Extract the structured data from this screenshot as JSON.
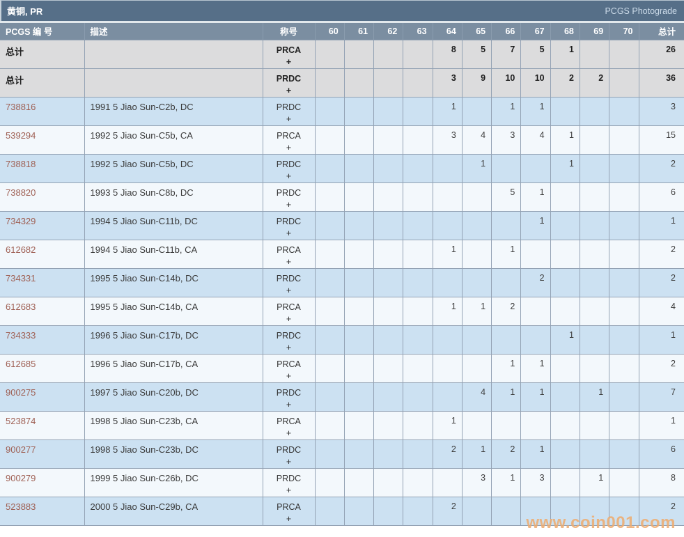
{
  "header": {
    "title": "黄铜, PR",
    "photograde_label": "PCGS Photograde"
  },
  "table": {
    "columns": {
      "pcgs": "PCGS 编 号",
      "description": "描述",
      "designation": "称号",
      "grades": [
        "60",
        "61",
        "62",
        "63",
        "64",
        "65",
        "66",
        "67",
        "68",
        "69",
        "70"
      ],
      "total": "总计"
    },
    "rows": [
      {
        "type": "total",
        "pcgs": "总计",
        "description": "",
        "designation": "PRCA",
        "plus": "+",
        "grades": [
          "",
          "",
          "",
          "",
          "8",
          "5",
          "7",
          "5",
          "1",
          "",
          ""
        ],
        "total": "26"
      },
      {
        "type": "total",
        "pcgs": "总计",
        "description": "",
        "designation": "PRDC",
        "plus": "+",
        "grades": [
          "",
          "",
          "",
          "",
          "3",
          "9",
          "10",
          "10",
          "2",
          "2",
          ""
        ],
        "total": "36"
      },
      {
        "type": "data",
        "pcgs": "738816",
        "description": "1991 5 Jiao Sun-C2b, DC",
        "designation": "PRDC",
        "plus": "+",
        "grades": [
          "",
          "",
          "",
          "",
          "1",
          "",
          "1",
          "1",
          "",
          "",
          ""
        ],
        "total": "3"
      },
      {
        "type": "data",
        "pcgs": "539294",
        "description": "1992 5 Jiao Sun-C5b, CA",
        "designation": "PRCA",
        "plus": "+",
        "grades": [
          "",
          "",
          "",
          "",
          "3",
          "4",
          "3",
          "4",
          "1",
          "",
          ""
        ],
        "total": "15"
      },
      {
        "type": "data",
        "pcgs": "738818",
        "description": "1992 5 Jiao Sun-C5b, DC",
        "designation": "PRDC",
        "plus": "+",
        "grades": [
          "",
          "",
          "",
          "",
          "",
          "1",
          "",
          "",
          "1",
          "",
          ""
        ],
        "total": "2"
      },
      {
        "type": "data",
        "pcgs": "738820",
        "description": "1993 5 Jiao Sun-C8b, DC",
        "designation": "PRDC",
        "plus": "+",
        "grades": [
          "",
          "",
          "",
          "",
          "",
          "",
          "5",
          "1",
          "",
          "",
          ""
        ],
        "total": "6"
      },
      {
        "type": "data",
        "pcgs": "734329",
        "description": "1994 5 Jiao Sun-C11b, DC",
        "designation": "PRDC",
        "plus": "+",
        "grades": [
          "",
          "",
          "",
          "",
          "",
          "",
          "",
          "1",
          "",
          "",
          ""
        ],
        "total": "1"
      },
      {
        "type": "data",
        "pcgs": "612682",
        "description": "1994 5 Jiao Sun-C11b, CA",
        "designation": "PRCA",
        "plus": "+",
        "grades": [
          "",
          "",
          "",
          "",
          "1",
          "",
          "1",
          "",
          "",
          "",
          ""
        ],
        "total": "2"
      },
      {
        "type": "data",
        "pcgs": "734331",
        "description": "1995 5 Jiao Sun-C14b, DC",
        "designation": "PRDC",
        "plus": "+",
        "grades": [
          "",
          "",
          "",
          "",
          "",
          "",
          "",
          "2",
          "",
          "",
          ""
        ],
        "total": "2"
      },
      {
        "type": "data",
        "pcgs": "612683",
        "description": "1995 5 Jiao Sun-C14b, CA",
        "designation": "PRCA",
        "plus": "+",
        "grades": [
          "",
          "",
          "",
          "",
          "1",
          "1",
          "2",
          "",
          "",
          "",
          ""
        ],
        "total": "4"
      },
      {
        "type": "data",
        "pcgs": "734333",
        "description": "1996 5 Jiao Sun-C17b, DC",
        "designation": "PRDC",
        "plus": "+",
        "grades": [
          "",
          "",
          "",
          "",
          "",
          "",
          "",
          "",
          "1",
          "",
          ""
        ],
        "total": "1"
      },
      {
        "type": "data",
        "pcgs": "612685",
        "description": "1996 5 Jiao Sun-C17b, CA",
        "designation": "PRCA",
        "plus": "+",
        "grades": [
          "",
          "",
          "",
          "",
          "",
          "",
          "1",
          "1",
          "",
          "",
          ""
        ],
        "total": "2"
      },
      {
        "type": "data",
        "pcgs": "900275",
        "description": "1997 5 Jiao Sun-C20b, DC",
        "designation": "PRDC",
        "plus": "+",
        "grades": [
          "",
          "",
          "",
          "",
          "",
          "4",
          "1",
          "1",
          "",
          "1",
          ""
        ],
        "total": "7"
      },
      {
        "type": "data",
        "pcgs": "523874",
        "description": "1998 5 Jiao Sun-C23b, CA",
        "designation": "PRCA",
        "plus": "+",
        "grades": [
          "",
          "",
          "",
          "",
          "1",
          "",
          "",
          "",
          "",
          "",
          ""
        ],
        "total": "1"
      },
      {
        "type": "data",
        "pcgs": "900277",
        "description": "1998 5 Jiao Sun-C23b, DC",
        "designation": "PRDC",
        "plus": "+",
        "grades": [
          "",
          "",
          "",
          "",
          "2",
          "1",
          "2",
          "1",
          "",
          "",
          ""
        ],
        "total": "6"
      },
      {
        "type": "data",
        "pcgs": "900279",
        "description": "1999 5 Jiao Sun-C26b, DC",
        "designation": "PRDC",
        "plus": "+",
        "grades": [
          "",
          "",
          "",
          "",
          "",
          "3",
          "1",
          "3",
          "",
          "1",
          ""
        ],
        "total": "8"
      },
      {
        "type": "data",
        "pcgs": "523883",
        "description": "2000 5 Jiao Sun-C29b, CA",
        "designation": "PRCA",
        "plus": "+",
        "grades": [
          "",
          "",
          "",
          "",
          "2",
          "",
          "",
          "",
          "",
          "",
          ""
        ],
        "total": "2"
      }
    ]
  },
  "watermark": {
    "text": "www.coin001.com"
  },
  "colors": {
    "title_bar_bg": "#566f88",
    "header_row_bg": "#7b8ea1",
    "total_row_bg": "#dcdcdd",
    "row_blue_bg": "#cce1f2",
    "row_white_bg": "#f3f8fc",
    "grid_border": "#93a2b4",
    "pcgs_link": "#9f6054",
    "watermark_orange": "#eead72"
  }
}
